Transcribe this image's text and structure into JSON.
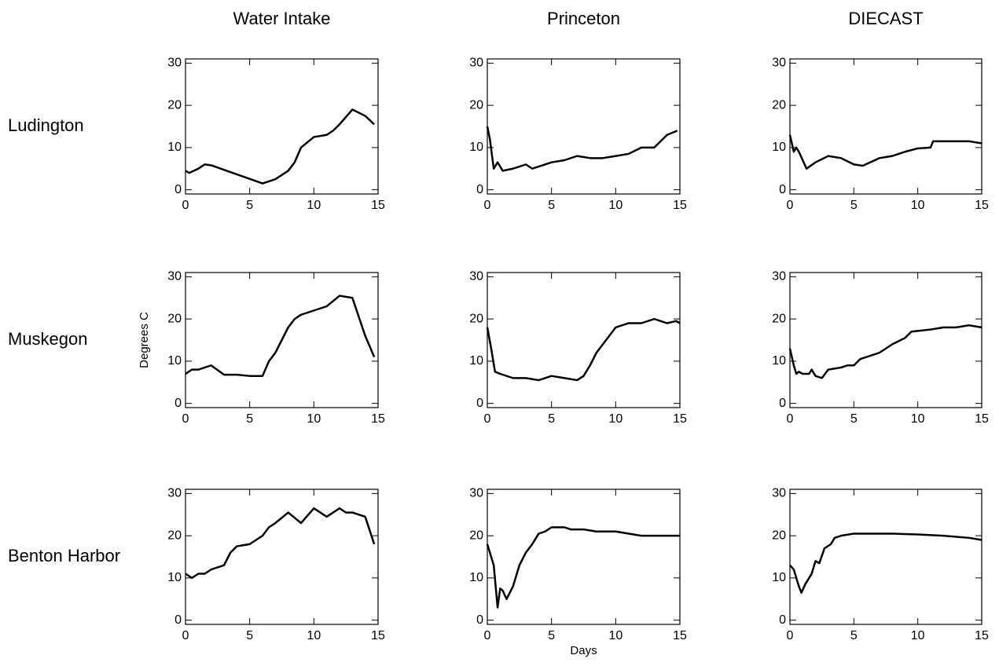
{
  "chart_data": [
    {
      "type": "line",
      "title": "Water Intake",
      "row_label": "Ludington",
      "color": "#000000",
      "x": [
        0,
        0.3,
        1,
        1.5,
        2,
        6,
        7,
        8,
        8.5,
        9,
        10,
        11,
        11.5,
        12,
        13,
        14,
        14.7
      ],
      "values": [
        4.5,
        4,
        5,
        6,
        5.8,
        1.5,
        2.5,
        4.5,
        6.5,
        10,
        12.5,
        13,
        14,
        15.5,
        19,
        17.5,
        15.5
      ],
      "xlim": [
        0,
        15
      ],
      "xticks": [
        0,
        5,
        10,
        15
      ],
      "ylim": [
        -1,
        31
      ],
      "yticks": [
        0,
        10,
        20,
        30
      ]
    },
    {
      "type": "line",
      "title": "Princeton",
      "color": "#000000",
      "x": [
        0,
        0.2,
        0.5,
        0.8,
        1.2,
        2,
        3,
        3.5,
        4,
        5,
        6,
        7,
        8,
        9,
        10,
        11,
        12,
        13,
        14,
        14.8
      ],
      "values": [
        15,
        12,
        5,
        6.5,
        4.5,
        5,
        6,
        5,
        5.5,
        6.5,
        7,
        8,
        7.5,
        7.5,
        8,
        8.5,
        10,
        10,
        13,
        14
      ],
      "xlim": [
        0,
        15
      ],
      "xticks": [
        0,
        5,
        10,
        15
      ],
      "ylim": [
        -1,
        31
      ],
      "yticks": [
        0,
        10,
        20,
        30
      ]
    },
    {
      "type": "line",
      "title": "DIECAST",
      "color": "#000000",
      "x": [
        0,
        0.3,
        0.5,
        0.7,
        1,
        1.3,
        2,
        3,
        4,
        5,
        5.7,
        7,
        8,
        9,
        10,
        11,
        11.2,
        13,
        14,
        15
      ],
      "values": [
        13,
        9,
        10,
        9,
        7,
        5,
        6.5,
        8,
        7.5,
        6,
        5.7,
        7.5,
        8,
        9,
        9.8,
        10,
        11.5,
        11.5,
        11.5,
        11
      ],
      "xlim": [
        0,
        15
      ],
      "xticks": [
        0,
        5,
        10,
        15
      ],
      "ylim": [
        -1,
        31
      ],
      "yticks": [
        0,
        10,
        20,
        30
      ]
    },
    {
      "type": "line",
      "row_label": "Muskegon",
      "ylabel": "Degrees C",
      "color": "#000000",
      "x": [
        0,
        0.5,
        1,
        2,
        3,
        4,
        5,
        6,
        6.5,
        7,
        8,
        8.5,
        9,
        10,
        11,
        12,
        13,
        14,
        14.7
      ],
      "values": [
        7,
        8,
        8,
        9,
        6.8,
        6.8,
        6.5,
        6.5,
        10,
        12,
        18,
        20,
        21,
        22,
        23,
        25.5,
        25,
        16,
        11
      ],
      "xlim": [
        0,
        15
      ],
      "xticks": [
        0,
        5,
        10,
        15
      ],
      "ylim": [
        -1,
        31
      ],
      "yticks": [
        0,
        10,
        20,
        30
      ]
    },
    {
      "type": "line",
      "color": "#000000",
      "x": [
        0,
        0.3,
        0.6,
        1,
        2,
        3,
        4,
        5,
        6,
        7,
        7.5,
        8,
        8.5,
        9,
        10,
        11,
        12,
        13,
        14,
        14.7,
        15
      ],
      "values": [
        18,
        13,
        7.5,
        7,
        6,
        6,
        5.5,
        6.5,
        6,
        5.5,
        6.5,
        9,
        12,
        14,
        18,
        19,
        19,
        20,
        19,
        19.5,
        19
      ],
      "xlim": [
        0,
        15
      ],
      "xticks": [
        0,
        5,
        10,
        15
      ],
      "ylim": [
        -1,
        31
      ],
      "yticks": [
        0,
        10,
        20,
        30
      ]
    },
    {
      "type": "line",
      "color": "#000000",
      "x": [
        0,
        0.3,
        0.5,
        0.7,
        1,
        1.5,
        1.7,
        2,
        2.5,
        3,
        4,
        4.5,
        5,
        5.5,
        6,
        7,
        8,
        9,
        9.5,
        11,
        12,
        13,
        14,
        15
      ],
      "values": [
        13,
        9,
        7,
        7.5,
        7,
        7,
        8,
        6.5,
        6,
        8,
        8.5,
        9,
        9,
        10.5,
        11,
        12,
        14,
        15.5,
        17,
        17.5,
        18,
        18,
        18.5,
        18
      ],
      "xlim": [
        0,
        15
      ],
      "xticks": [
        0,
        5,
        10,
        15
      ],
      "ylim": [
        -1,
        31
      ],
      "yticks": [
        0,
        10,
        20,
        30
      ]
    },
    {
      "type": "line",
      "row_label": "Benton Harbor",
      "color": "#000000",
      "x": [
        0,
        0.5,
        1,
        1.5,
        2,
        3,
        3.5,
        4,
        5,
        6,
        6.5,
        7,
        8,
        9,
        10,
        11,
        12,
        12.5,
        13,
        14,
        14.7
      ],
      "values": [
        11,
        10,
        11,
        11,
        12,
        13,
        16,
        17.5,
        18,
        20,
        22,
        23,
        25.5,
        23,
        26.5,
        24.5,
        26.5,
        25.5,
        25.5,
        24.5,
        18
      ],
      "xlim": [
        0,
        15
      ],
      "xticks": [
        0,
        5,
        10,
        15
      ],
      "ylim": [
        -1,
        31
      ],
      "yticks": [
        0,
        10,
        20,
        30
      ]
    },
    {
      "type": "line",
      "xlabel": "Days",
      "color": "#000000",
      "x": [
        0,
        0.5,
        0.8,
        1,
        1.2,
        1.5,
        2,
        2.5,
        3,
        3.5,
        4,
        4.5,
        5,
        6,
        6.5,
        7.5,
        8.5,
        10,
        12,
        14,
        15
      ],
      "values": [
        18,
        13,
        3,
        7.5,
        7,
        5,
        8,
        13,
        16,
        18,
        20.5,
        21,
        22,
        22,
        21.5,
        21.5,
        21,
        21,
        20,
        20,
        20
      ],
      "xlim": [
        0,
        15
      ],
      "xticks": [
        0,
        5,
        10,
        15
      ],
      "ylim": [
        -1,
        31
      ],
      "yticks": [
        0,
        10,
        20,
        30
      ]
    },
    {
      "type": "line",
      "color": "#000000",
      "x": [
        0,
        0.3,
        0.7,
        0.9,
        1.2,
        1.7,
        2,
        2.3,
        2.7,
        3.2,
        3.5,
        4,
        5,
        6.5,
        8,
        10,
        12,
        14,
        15
      ],
      "values": [
        13,
        12,
        8,
        6.5,
        8.5,
        11,
        14,
        13.5,
        17,
        18,
        19.5,
        20,
        20.5,
        20.5,
        20.5,
        20.3,
        20,
        19.5,
        19
      ],
      "xlim": [
        0,
        15
      ],
      "xticks": [
        0,
        5,
        10,
        15
      ],
      "ylim": [
        -1,
        31
      ],
      "yticks": [
        0,
        10,
        20,
        30
      ]
    }
  ]
}
